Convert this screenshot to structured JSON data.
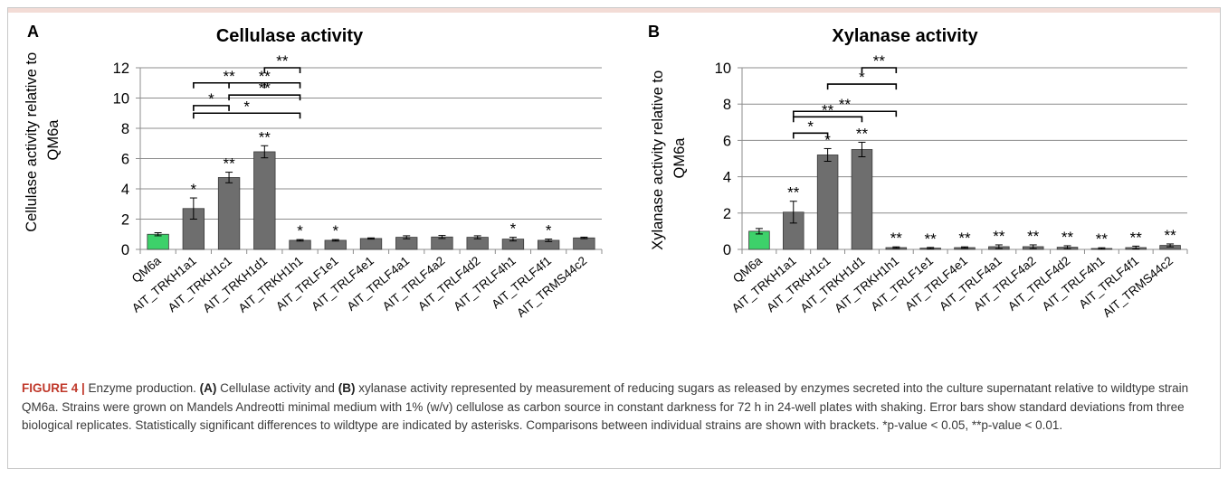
{
  "figure": {
    "caption_label": "FIGURE 4 |",
    "caption_title": " Enzyme production. ",
    "caption_a": "(A)",
    "caption_t1": " Cellulase activity and ",
    "caption_b": "(B)",
    "caption_t2": " xylanase activity represented by measurement of reducing sugars as released by enzymes secreted into the culture supernatant relative to wildtype strain QM6a. Strains were grown on Mandels Andreotti minimal medium with 1% (w/v) cellulose as carbon source in constant darkness for 72 h in 24-well plates with shaking. Error bars show standard deviations from three biological replicates. Statistically significant differences to wildtype are indicated by asterisks. Comparisons between individual strains are shown with brackets. ",
    "caption_p1": "*p-value < 0.05, **p-value < 0.01."
  },
  "chart_data": [
    {
      "panel": "A",
      "type": "bar",
      "title": "Cellulase activity",
      "ylabel": "Cellulase activity relative to QM6a",
      "ylim": [
        0,
        12
      ],
      "yticks": [
        0,
        2,
        4,
        6,
        8,
        10,
        12
      ],
      "grid": true,
      "categories": [
        "QM6a",
        "AIT_TRKH1a1",
        "AIT_TRKH1c1",
        "AIT_TRKH1d1",
        "AIT_TRKH1h1",
        "AIT_TRLF1e1",
        "AIT_TRLF4e1",
        "AIT_TRLF4a1",
        "AIT_TRLF4a2",
        "AIT_TRLF4d2",
        "AIT_TRLF4h1",
        "AIT_TRLF4f1",
        "AIT_TRMS44c2"
      ],
      "values": [
        1.0,
        2.7,
        4.75,
        6.45,
        0.6,
        0.6,
        0.72,
        0.8,
        0.82,
        0.8,
        0.68,
        0.6,
        0.76
      ],
      "errors": [
        0.1,
        0.7,
        0.35,
        0.4,
        0.05,
        0.05,
        0.04,
        0.1,
        0.1,
        0.1,
        0.12,
        0.08,
        0.05
      ],
      "significance": [
        "",
        "*",
        "**",
        "**",
        "*",
        "*",
        "",
        "",
        "",
        "",
        "*",
        "*",
        ""
      ],
      "bar_colors": {
        "wildtype": "#3dd16a",
        "strain": "#6e6e6e"
      },
      "brackets": [
        {
          "from": 1,
          "to": 2,
          "y": 9.5,
          "label": "*"
        },
        {
          "from": 1,
          "to": 3,
          "y": 11.0,
          "label": "**"
        },
        {
          "from": 1,
          "to": 4,
          "y": 9.0,
          "label": "*"
        },
        {
          "from": 2,
          "to": 4,
          "y": 10.2,
          "label": "**"
        },
        {
          "from": 2,
          "to": 4,
          "y": 11.0,
          "label": "**"
        },
        {
          "from": 3,
          "to": 4,
          "y": 12.0,
          "label": "**"
        }
      ]
    },
    {
      "panel": "B",
      "type": "bar",
      "title": "Xylanase activity",
      "ylabel": "Xylanase activity relative to QM6a",
      "ylim": [
        0,
        10
      ],
      "yticks": [
        0,
        2,
        4,
        6,
        8,
        10
      ],
      "grid": true,
      "categories": [
        "QM6a",
        "AIT_TRKH1a1",
        "AIT_TRKH1c1",
        "AIT_TRKH1d1",
        "AIT_TRKH1h1",
        "AIT_TRLF1e1",
        "AIT_TRLF4e1",
        "AIT_TRLF4a1",
        "AIT_TRLF4a2",
        "AIT_TRLF4d2",
        "AIT_TRLF4h1",
        "AIT_TRLF4f1",
        "AIT_TRMS44c2"
      ],
      "values": [
        1.0,
        2.05,
        5.2,
        5.5,
        0.1,
        0.07,
        0.1,
        0.15,
        0.15,
        0.12,
        0.05,
        0.1,
        0.22
      ],
      "errors": [
        0.15,
        0.6,
        0.35,
        0.4,
        0.04,
        0.04,
        0.04,
        0.1,
        0.1,
        0.08,
        0.04,
        0.08,
        0.08
      ],
      "significance": [
        "",
        "**",
        "*",
        "**",
        "**",
        "**",
        "**",
        "**",
        "**",
        "**",
        "**",
        "**",
        "**"
      ],
      "bar_colors": {
        "wildtype": "#3dd16a",
        "strain": "#6e6e6e"
      },
      "brackets": [
        {
          "from": 1,
          "to": 2,
          "y": 6.4,
          "label": "*"
        },
        {
          "from": 1,
          "to": 3,
          "y": 7.3,
          "label": "**"
        },
        {
          "from": 1,
          "to": 4,
          "y": 7.6,
          "label": "**"
        },
        {
          "from": 2,
          "to": 4,
          "y": 9.1,
          "label": "*"
        },
        {
          "from": 3,
          "to": 4,
          "y": 10.0,
          "label": "**"
        }
      ]
    }
  ]
}
